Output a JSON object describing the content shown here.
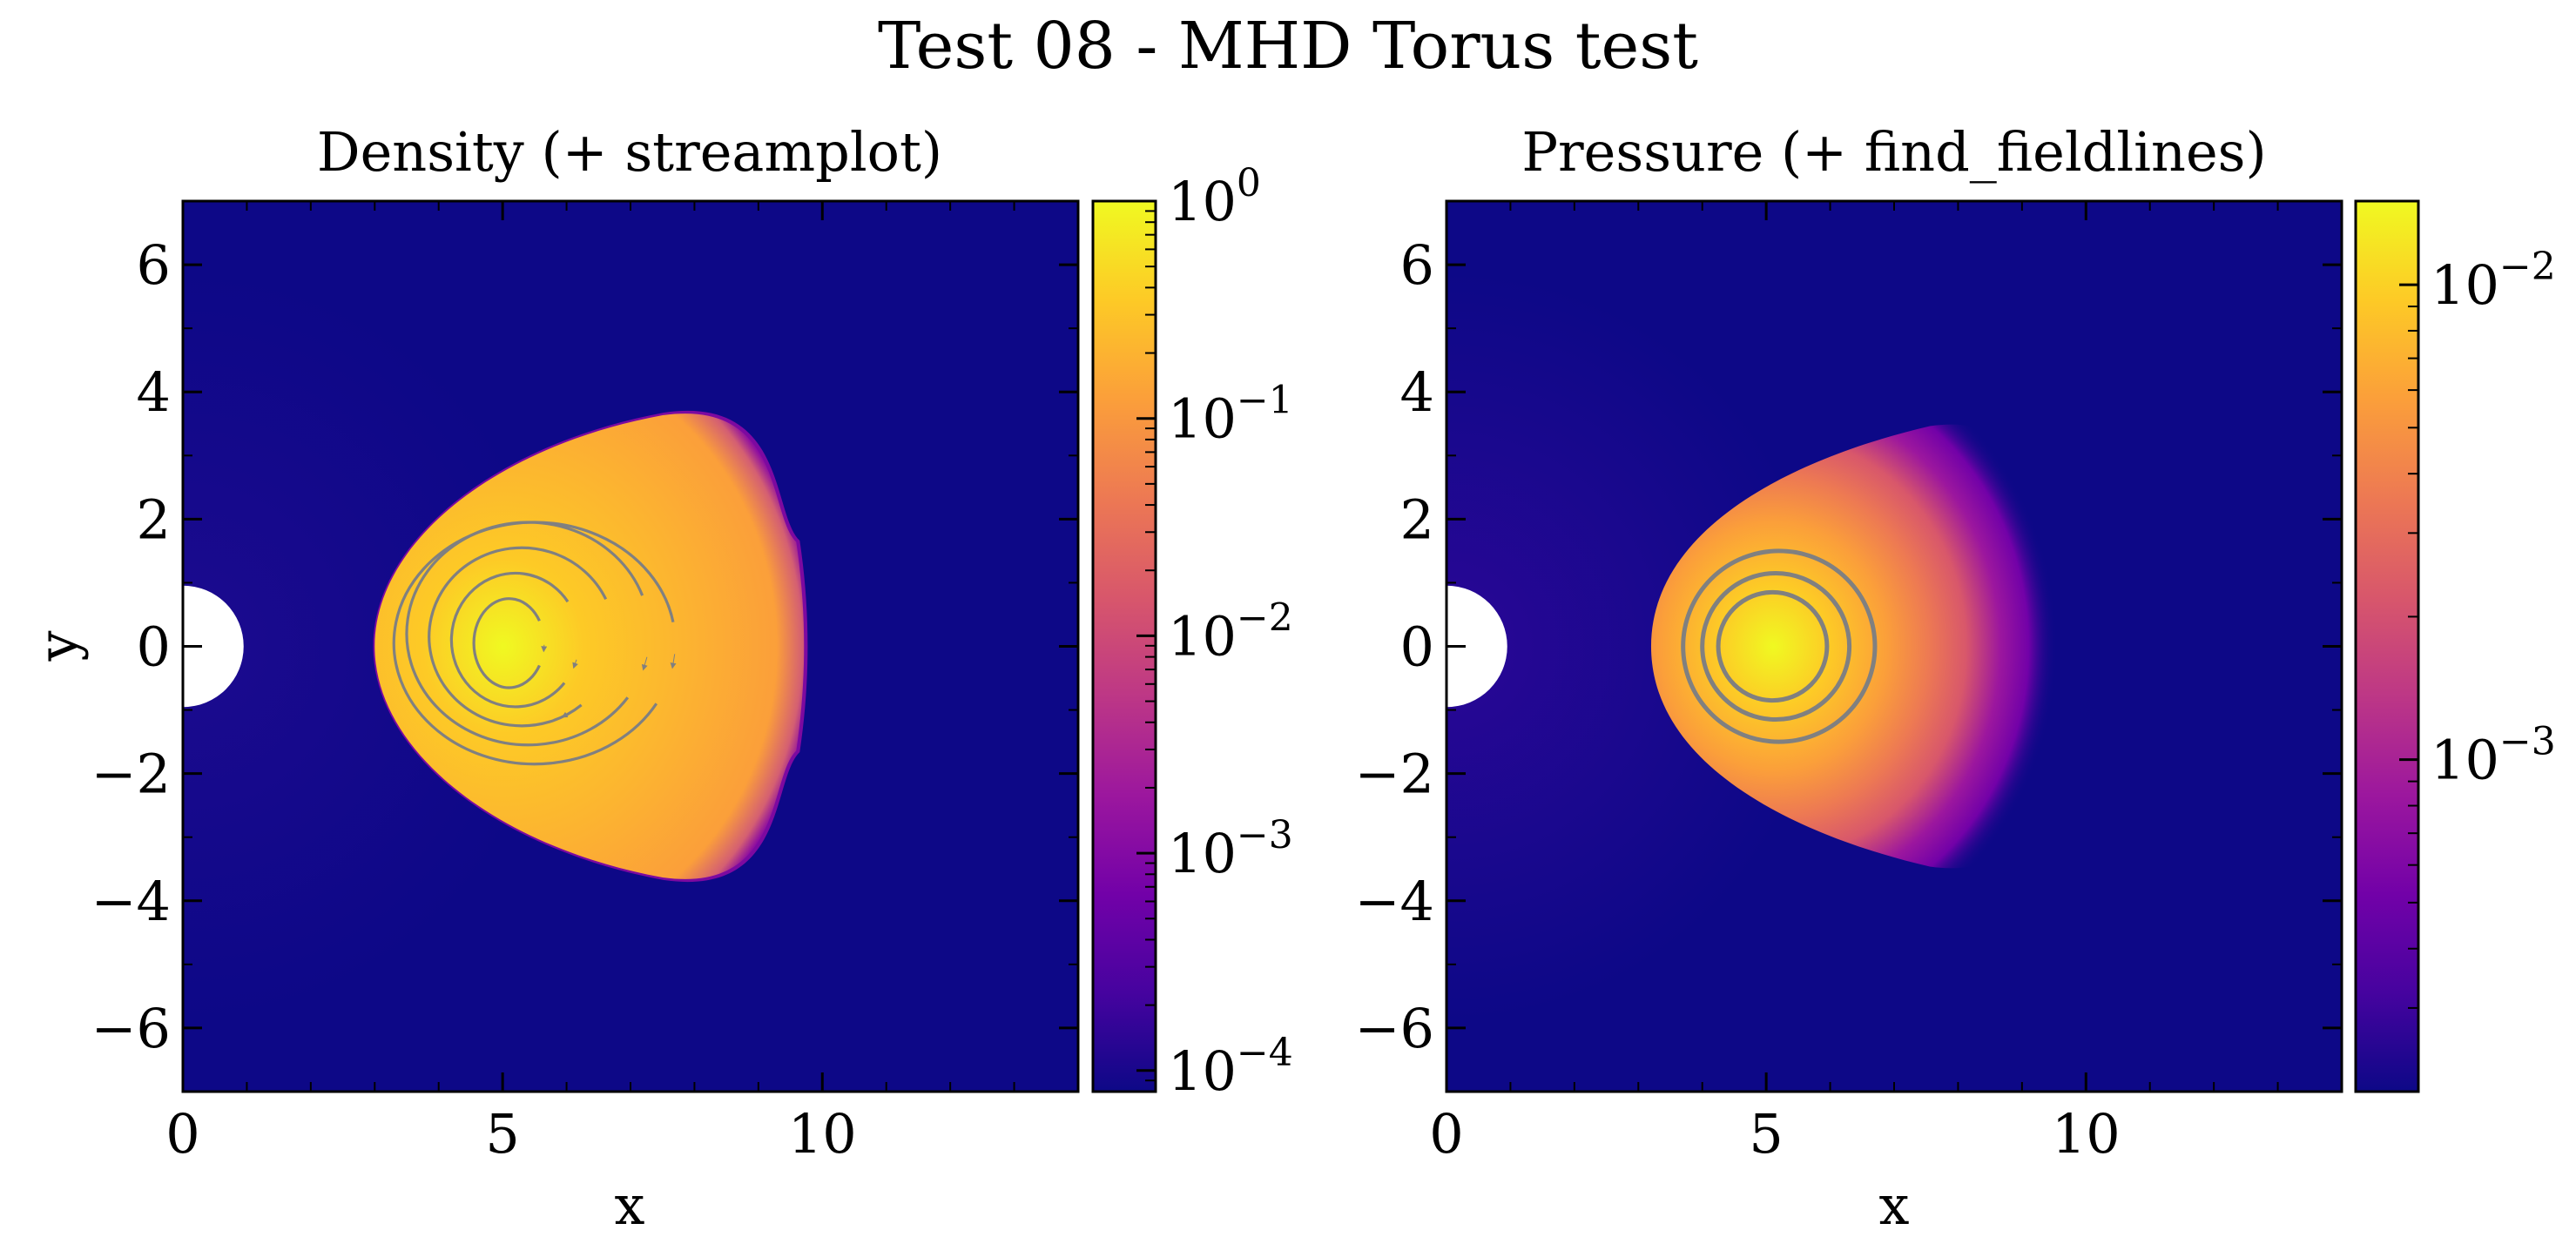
{
  "figure": {
    "title": "Test 08 - MHD Torus test"
  },
  "colormap": [
    "#0d0887",
    "#46039f",
    "#7201a8",
    "#9c179e",
    "#bd3786",
    "#d8576b",
    "#ed7953",
    "#fb9f3a",
    "#fdca26",
    "#f0f921"
  ],
  "overlay_color": "#808080",
  "chart_data": [
    {
      "type": "heatmap",
      "title": "Density (+ streamplot)",
      "xlabel": "x",
      "ylabel": "y",
      "xlim": [
        0,
        14
      ],
      "ylim": [
        -7,
        7
      ],
      "x_ticks": [
        0,
        5,
        10
      ],
      "x_tick_labels": [
        "0",
        "5",
        "10"
      ],
      "y_ticks": [
        6,
        4,
        2,
        0,
        -2,
        -4,
        -6
      ],
      "y_tick_labels": [
        "6",
        "4",
        "2",
        "0",
        "−2",
        "−4",
        "−6"
      ],
      "torus": {
        "center": [
          5.0,
          0.0
        ],
        "x_extent": [
          3.0,
          9.7
        ],
        "y_extent": [
          -3.7,
          3.7
        ],
        "peak_value": 1.0,
        "background_value": 0.0001
      },
      "inner_boundary": {
        "center": [
          0,
          0
        ],
        "radius": 0.95
      },
      "colorbar": {
        "scale": "log",
        "range": [
          8e-05,
          1.0
        ],
        "ticks": [
          {
            "value": 1,
            "base": "10",
            "exponent": "0"
          },
          {
            "value": 0.1,
            "base": "10",
            "exponent": "−1"
          },
          {
            "value": 0.01,
            "base": "10",
            "exponent": "−2"
          },
          {
            "value": 0.001,
            "base": "10",
            "exponent": "−3"
          },
          {
            "value": 0.0001,
            "base": "10",
            "exponent": "−4"
          }
        ]
      },
      "overlay": {
        "kind": "streamplot",
        "lines": [
          {
            "cx": 5.1,
            "cy": 0.05,
            "rx": 0.55,
            "ry": 0.7,
            "gap_start": 330,
            "gap_end": 30,
            "arrow_angle": 355
          },
          {
            "cx": 5.2,
            "cy": 0.1,
            "rx": 1.0,
            "ry": 1.05,
            "gap_start": 320,
            "gap_end": 35,
            "arrow_angle": 340
          },
          {
            "cx": 5.3,
            "cy": 0.15,
            "rx": 1.45,
            "ry": 1.4,
            "gap_start": 310,
            "gap_end": 25,
            "arrow_angle": 300
          },
          {
            "cx": 5.4,
            "cy": 0.2,
            "rx": 1.9,
            "ry": 1.75,
            "gap_start": 325,
            "gap_end": 20,
            "arrow_angle": 345
          },
          {
            "cx": 5.5,
            "cy": 0.05,
            "rx": 2.2,
            "ry": 1.9,
            "gap_start": 330,
            "gap_end": 10,
            "arrow_angle": 352
          }
        ]
      }
    },
    {
      "type": "heatmap",
      "title": "Pressure (+ find_fieldlines)",
      "xlabel": "x",
      "ylabel": "",
      "xlim": [
        0,
        14
      ],
      "ylim": [
        -7,
        7
      ],
      "x_ticks": [
        0,
        5,
        10
      ],
      "x_tick_labels": [
        "0",
        "5",
        "10"
      ],
      "y_ticks": [
        6,
        4,
        2,
        0,
        -2,
        -4,
        -6
      ],
      "y_tick_labels": [
        "6",
        "4",
        "2",
        "0",
        "−2",
        "−4",
        "−6"
      ],
      "torus": {
        "center": [
          5.1,
          0.0
        ],
        "x_extent": [
          3.2,
          9.5
        ],
        "y_extent": [
          -3.6,
          3.6
        ],
        "peak_value": 0.015,
        "background_value": 0.0002
      },
      "inner_boundary": {
        "center": [
          0,
          0
        ],
        "radius": 0.95
      },
      "colorbar": {
        "scale": "log",
        "range": [
          0.0002,
          0.015
        ],
        "ticks": [
          {
            "value": 0.01,
            "base": "10",
            "exponent": "−2"
          },
          {
            "value": 0.001,
            "base": "10",
            "exponent": "−3"
          }
        ]
      },
      "overlay": {
        "kind": "fieldlines",
        "lines": [
          {
            "cx": 5.1,
            "cy": 0.0,
            "rx": 0.85,
            "ry": 0.85
          },
          {
            "cx": 5.15,
            "cy": 0.0,
            "rx": 1.15,
            "ry": 1.15
          },
          {
            "cx": 5.2,
            "cy": 0.0,
            "rx": 1.5,
            "ry": 1.5
          }
        ]
      }
    }
  ]
}
